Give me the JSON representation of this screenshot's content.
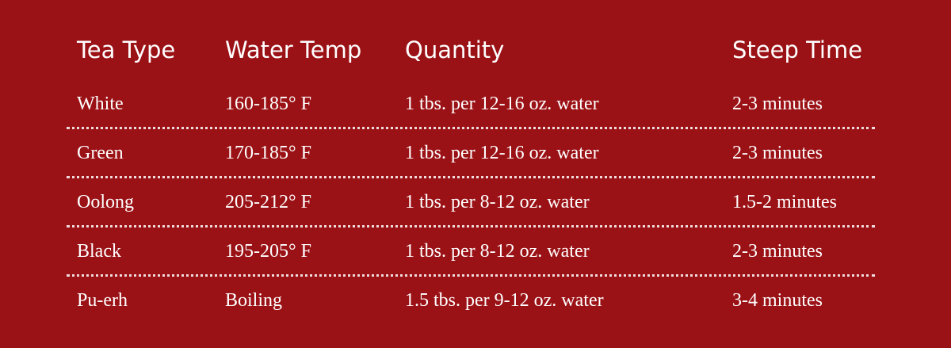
{
  "table": {
    "header": [
      "Tea Type",
      "Water Temp",
      "Quantity",
      "Steep Time"
    ],
    "rows": [
      [
        "White",
        "160-185° F",
        "1 tbs. per 12-16 oz. water",
        "2-3 minutes"
      ],
      [
        "Green",
        "170-185° F",
        "1 tbs. per 12-16 oz. water",
        "2-3 minutes"
      ],
      [
        "Oolong",
        "205-212° F",
        "1 tbs. per 8-12 oz. water",
        "1.5-2 minutes"
      ],
      [
        "Black",
        "195-205° F",
        "1 tbs. per 8-12 oz. water",
        "2-3 minutes"
      ],
      [
        "Pu-erh",
        "Boiling",
        "1.5 tbs. per 9-12 oz. water",
        "3-4 minutes"
      ]
    ]
  }
}
